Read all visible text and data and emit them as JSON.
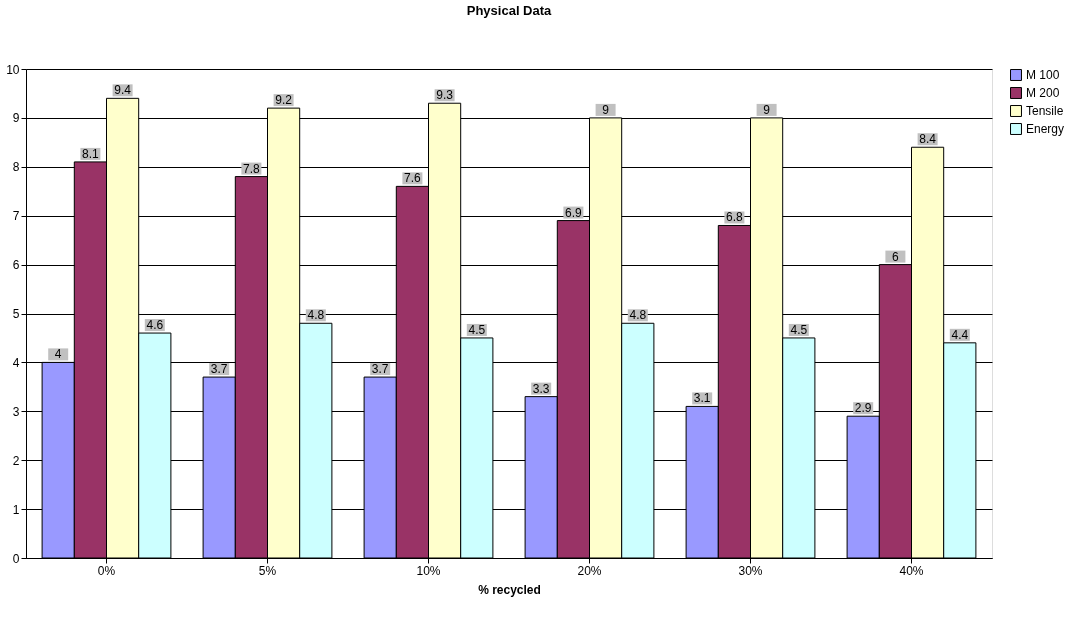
{
  "chart_data": {
    "type": "bar",
    "title": "Physical Data",
    "xlabel": "% recycled",
    "categories": [
      "0%",
      "5%",
      "10%",
      "20%",
      "30%",
      "40%"
    ],
    "series": [
      {
        "name": "M 100",
        "color": "#9999ff",
        "values": [
          4,
          3.7,
          3.7,
          3.3,
          3.1,
          2.9
        ]
      },
      {
        "name": "M 200",
        "color": "#993366",
        "values": [
          8.1,
          7.8,
          7.6,
          6.9,
          6.8,
          6
        ]
      },
      {
        "name": "Tensile",
        "color": "#ffffcc",
        "values": [
          9.4,
          9.2,
          9.3,
          9,
          9,
          8.4
        ]
      },
      {
        "name": "Energy",
        "color": "#ccffff",
        "values": [
          4.6,
          4.8,
          4.5,
          4.8,
          4.5,
          4.4
        ]
      }
    ],
    "ylim": [
      0,
      10
    ],
    "yticks": [
      0,
      1,
      2,
      3,
      4,
      5,
      6,
      7,
      8,
      9,
      10
    ],
    "grid": "y",
    "legend": "right",
    "data_labels": true
  }
}
